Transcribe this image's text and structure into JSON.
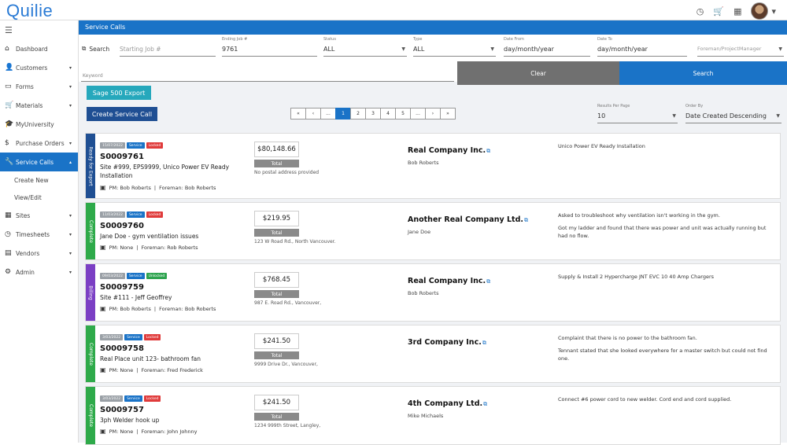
{
  "app": {
    "logo": "Quilie"
  },
  "topbar": {
    "icons": [
      "clock-icon",
      "cart-icon",
      "building-icon"
    ],
    "caret": "▾"
  },
  "sidebar": {
    "items": [
      {
        "icon": "⌂",
        "label": "Dashboard",
        "arrow": ""
      },
      {
        "icon": "👤",
        "label": "Customers",
        "arrow": "▾"
      },
      {
        "icon": "▭",
        "label": "Forms",
        "arrow": "▾"
      },
      {
        "icon": "🛒",
        "label": "Materials",
        "arrow": "▾"
      },
      {
        "icon": "🎓",
        "label": "MyUniversity",
        "arrow": ""
      },
      {
        "icon": "$",
        "label": "Purchase Orders",
        "arrow": "▾"
      },
      {
        "icon": "🔧",
        "label": "Service Calls",
        "arrow": "▴"
      }
    ],
    "sub_items": [
      "Create New",
      "View/Edit"
    ],
    "items_after": [
      {
        "icon": "▦",
        "label": "Sites",
        "arrow": "▾"
      },
      {
        "icon": "◷",
        "label": "Timesheets",
        "arrow": "▾"
      },
      {
        "icon": "▤",
        "label": "Vendors",
        "arrow": "▾"
      },
      {
        "icon": "⚙",
        "label": "Admin",
        "arrow": "▾"
      }
    ]
  },
  "header": {
    "title": "Service Calls"
  },
  "filters": {
    "search_label": "Search",
    "starting_job_placeholder": "Starting Job #",
    "ending_job_label": "Ending Job #",
    "ending_job_value": "9761",
    "status_label": "Status",
    "status_value": "ALL",
    "type_label": "Type",
    "type_value": "ALL",
    "date_from_label": "Date From",
    "date_from_value": "day/month/year",
    "date_to_label": "Date To",
    "date_to_value": "day/month/year",
    "foreman_placeholder": "Foreman/ProjectManager",
    "keyword_placeholder": "Keyword",
    "clear_label": "Clear",
    "search_button": "Search"
  },
  "actions": {
    "sage_export": "Sage 500 Export",
    "create_call": "Create Service Call"
  },
  "pagination": {
    "pages": [
      "«",
      "‹",
      "...",
      "1",
      "2",
      "3",
      "4",
      "5",
      "...",
      "›",
      "»"
    ],
    "current": "1"
  },
  "results_per_page": {
    "label": "Results Per Page",
    "value": "10"
  },
  "order_by": {
    "label": "Order By",
    "value": "Date Created Descending"
  },
  "calls": [
    {
      "stage": "Ready for Export",
      "stage_color": "#1f4f93",
      "date": "15/07/2022",
      "type": "Service",
      "lock": "Locked",
      "lock_color": "#e03b3b",
      "job": "S0009761",
      "desc": "Site #999, EPS9999, Unico Power EV Ready Installation",
      "pm": "PM: Bob Roberts",
      "foreman": "Foreman: Bob Roberts",
      "amount": "$80,148.66",
      "total": "Total",
      "address": "No postal address provided",
      "company": "Real Company Inc.",
      "contact": "Bob Roberts",
      "notes": [
        "Unico Power EV Ready Installation"
      ]
    },
    {
      "stage": "Complete",
      "stage_color": "#2eaa4a",
      "date": "11/03/2022",
      "type": "Service",
      "lock": "Locked",
      "lock_color": "#e03b3b",
      "job": "S0009760",
      "desc": "Jane Doe - gym ventilation issues",
      "pm": "PM: None",
      "foreman": "Foreman: Rob Roberts",
      "amount": "$219.95",
      "total": "Total",
      "address": "123 W Road Rd., North Vancouver.",
      "company": "Another Real Company Ltd.",
      "contact": "Jane Doe",
      "notes": [
        "Asked to troubleshoot why ventilation isn't working in the gym.",
        "Got my ladder and found that there was power and unit was actually running but had no flow."
      ]
    },
    {
      "stage": "Billing",
      "stage_color": "#7b3fc4",
      "date": "09/03/2022",
      "type": "Service",
      "lock": "Unlocked",
      "lock_color": "#2ea44f",
      "job": "S0009759",
      "desc": "Site #111 - Jeff Geoffrey",
      "pm": "PM: Bob Roberts",
      "foreman": "Foreman: Bob Roberts",
      "amount": "$768.45",
      "total": "Total",
      "address": "987 E. Road Rd., Vancouver,",
      "company": "Real Company Inc.",
      "contact": "Bob Roberts",
      "notes": [
        "Supply & Install 2 Hypercharge JNT EVC 10 40 Amp Chargers"
      ]
    },
    {
      "stage": "Complete",
      "stage_color": "#2eaa4a",
      "date": "3/03/2022",
      "type": "Service",
      "lock": "Locked",
      "lock_color": "#e03b3b",
      "job": "S0009758",
      "desc": "Real Place unit 123- bathroom fan",
      "pm": "PM: None",
      "foreman": "Foreman: Fred Frederick",
      "amount": "$241.50",
      "total": "Total",
      "address": "9999 Drive Dr., Vancouver,",
      "company": "3rd Company Inc.",
      "contact": "",
      "notes": [
        "Complaint that there is no power to the bathroom fan.",
        "Tennant stated that she looked everywhere for a master switch but could not find one."
      ]
    },
    {
      "stage": "Complete",
      "stage_color": "#2eaa4a",
      "date": "3/03/2022",
      "type": "Service",
      "lock": "Locked",
      "lock_color": "#e03b3b",
      "job": "S0009757",
      "desc": "3ph Welder hook up",
      "pm": "PM: None",
      "foreman": "Foreman: John Johnny",
      "amount": "$241.50",
      "total": "Total",
      "address": "1234 999th Street, Langley,",
      "company": "4th Company Ltd.",
      "contact": "Mike Michaels",
      "notes": [
        "Connect #6 power cord to new welder. Cord end and cord supplied."
      ]
    }
  ]
}
